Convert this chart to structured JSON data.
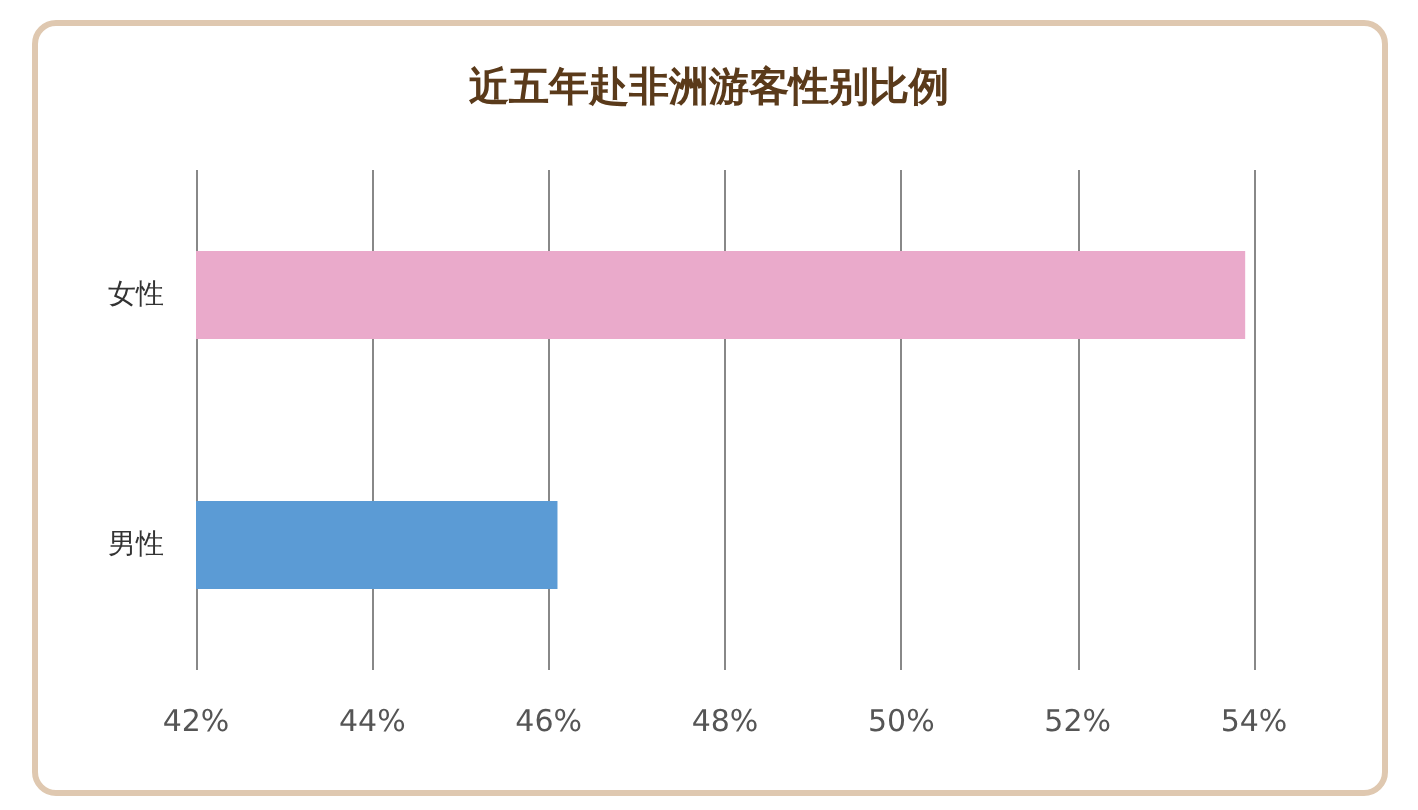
{
  "chart_data": {
    "type": "bar",
    "title": "近五年赴非洲游客性别比例",
    "orientation": "horizontal",
    "categories": [
      "女性",
      "男性"
    ],
    "values": [
      53.9,
      46.1
    ],
    "colors": [
      "#eaaacb",
      "#5b9bd5"
    ],
    "xlim": [
      42,
      54
    ],
    "xticks": [
      {
        "value": 42,
        "label": "42%"
      },
      {
        "value": 44,
        "label": "44%"
      },
      {
        "value": 46,
        "label": "46%"
      },
      {
        "value": 48,
        "label": "48%"
      },
      {
        "value": 50,
        "label": "50%"
      },
      {
        "value": 52,
        "label": "52%"
      },
      {
        "value": 54,
        "label": "54%"
      }
    ],
    "grid": "x"
  }
}
